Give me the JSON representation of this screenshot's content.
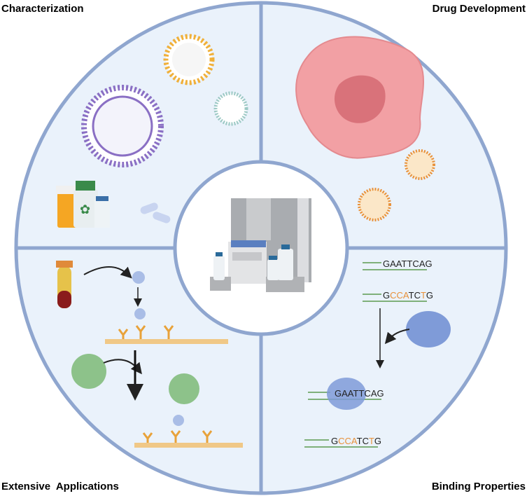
{
  "quadrants": {
    "top_left": "Characterization",
    "top_right": "Drug Development",
    "bottom_left": "Extensive  Applications",
    "bottom_right": "Binding Properties"
  },
  "sequences": {
    "seq1": [
      "G",
      "A",
      "A",
      "T",
      "T",
      "C",
      "A",
      "G"
    ],
    "seq2": [
      "G",
      "C",
      "C",
      "A",
      "T",
      "C",
      "T",
      "G"
    ],
    "seq2_highlight": [
      false,
      true,
      true,
      true,
      false,
      false,
      true,
      false
    ]
  },
  "colors": {
    "outline": "#8fa6cf",
    "quadrant_fill": "#eaf2fb",
    "center_fill": "#ffffff",
    "highlight_base": "#e8913a",
    "dna": "#7fb07a",
    "protein": "#7f9bd8"
  },
  "icons": [
    "exosome-icon",
    "medicine-bottles-icon",
    "capsule-icon",
    "cancer-cell-icon",
    "nanoparticle-icon",
    "instrument-icon",
    "test-tube-icon",
    "antibody-icon",
    "virus-particle-icon",
    "protein-icon",
    "dna-icon",
    "arrow-icon"
  ]
}
